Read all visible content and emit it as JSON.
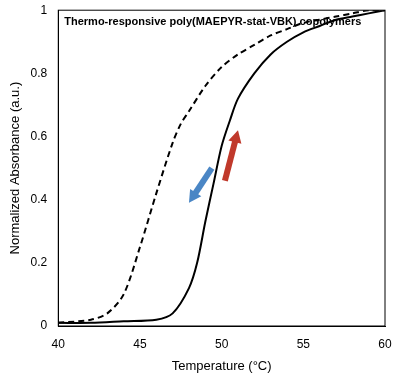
{
  "chart_data": {
    "type": "line",
    "title": "Thermo-responsive poly(MAEPYR-stat-VBK) copolymers",
    "x_label": "Temperature (°C)",
    "y_label": "Normalized Absorbance (a.u.)",
    "xlim": [
      40,
      60
    ],
    "xticks": [
      40,
      45,
      50,
      55,
      60
    ],
    "ylim": [
      0,
      1
    ],
    "yticks": [
      0,
      0.2,
      0.4,
      0.6,
      0.8,
      1
    ],
    "grid": false,
    "series": [
      {
        "color": "#000000",
        "line_style": "solid",
        "x": [
          40,
          42,
          44,
          46,
          47,
          48,
          48.5,
          49,
          49.5,
          50,
          50.5,
          51,
          52,
          53,
          54,
          55,
          56,
          57,
          58,
          59,
          60
        ],
        "values": [
          0.01,
          0.01,
          0.015,
          0.02,
          0.04,
          0.12,
          0.2,
          0.33,
          0.45,
          0.57,
          0.65,
          0.72,
          0.8,
          0.86,
          0.9,
          0.93,
          0.95,
          0.97,
          0.98,
          0.99,
          1.0
        ]
      },
      {
        "color": "#000000",
        "line_style": "dashed",
        "x": [
          40,
          42,
          43,
          44,
          45,
          46,
          47,
          47.5,
          48,
          49,
          50,
          51,
          52,
          53,
          54,
          55,
          56,
          57,
          58,
          59,
          60
        ],
        "values": [
          0.01,
          0.02,
          0.04,
          0.1,
          0.25,
          0.42,
          0.58,
          0.64,
          0.68,
          0.76,
          0.82,
          0.86,
          0.89,
          0.92,
          0.94,
          0.96,
          0.97,
          0.98,
          0.99,
          1.0,
          1.0
        ]
      }
    ]
  }
}
